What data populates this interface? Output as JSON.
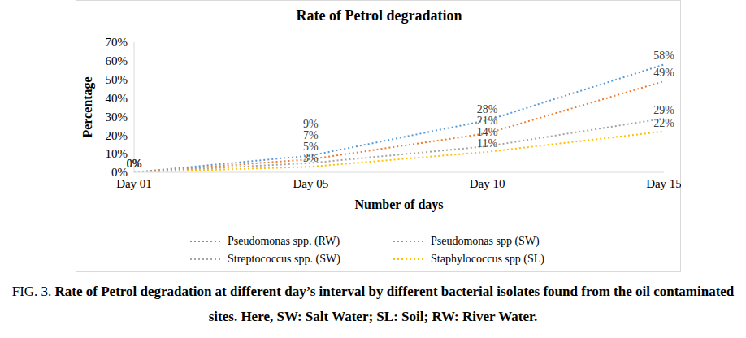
{
  "chart_data": {
    "type": "line",
    "title": "Rate of Petrol degradation",
    "caption_label": "FIG. 3.",
    "caption": "Rate of Petrol degradation at different day’s interval by different bacterial isolates found from the oil contaminated sites. Here, SW: Salt Water; SL: Soil; RW: River Water.",
    "x_label": "Number of days",
    "y_label": "Percentage",
    "categories": [
      "Day 01",
      "Day 05",
      "Day 10",
      "Day 15"
    ],
    "series": [
      {
        "name": "Pseudomonas spp. (RW)",
        "color": "#5b9bd5",
        "values": [
          0,
          9,
          28,
          58
        ],
        "value_labels": [
          "0%",
          "9%",
          "28%",
          "58%"
        ]
      },
      {
        "name": "Pseudomonas spp (SW)",
        "color": "#ed7d31",
        "values": [
          0,
          7,
          21,
          49
        ],
        "value_labels": [
          "0%",
          "7%",
          "21%",
          "49%"
        ]
      },
      {
        "name": "Streptococcus spp. (SW)",
        "color": "#a5a5a5",
        "values": [
          0,
          5,
          14,
          29
        ],
        "value_labels": [
          "0%",
          "5%",
          "14%",
          "29%"
        ]
      },
      {
        "name": "Staphylococcus spp (SL)",
        "color": "#ffc000",
        "values": [
          0,
          3,
          11,
          22
        ],
        "value_labels": [
          "0%",
          "3%",
          "11%",
          "22%"
        ]
      }
    ],
    "ylim": [
      0,
      70
    ],
    "yticks": [
      {
        "value": 0,
        "label": "0%"
      },
      {
        "value": 10,
        "label": "10%"
      },
      {
        "value": 20,
        "label": "20%"
      },
      {
        "value": 30,
        "label": "30%"
      },
      {
        "value": 40,
        "label": "40%"
      },
      {
        "value": 50,
        "label": "50%"
      },
      {
        "value": 60,
        "label": "60%"
      },
      {
        "value": 70,
        "label": "70%"
      }
    ],
    "grid": false,
    "legend": "bottom",
    "data_labels": true,
    "line_style": "dotted",
    "marker": "none"
  }
}
